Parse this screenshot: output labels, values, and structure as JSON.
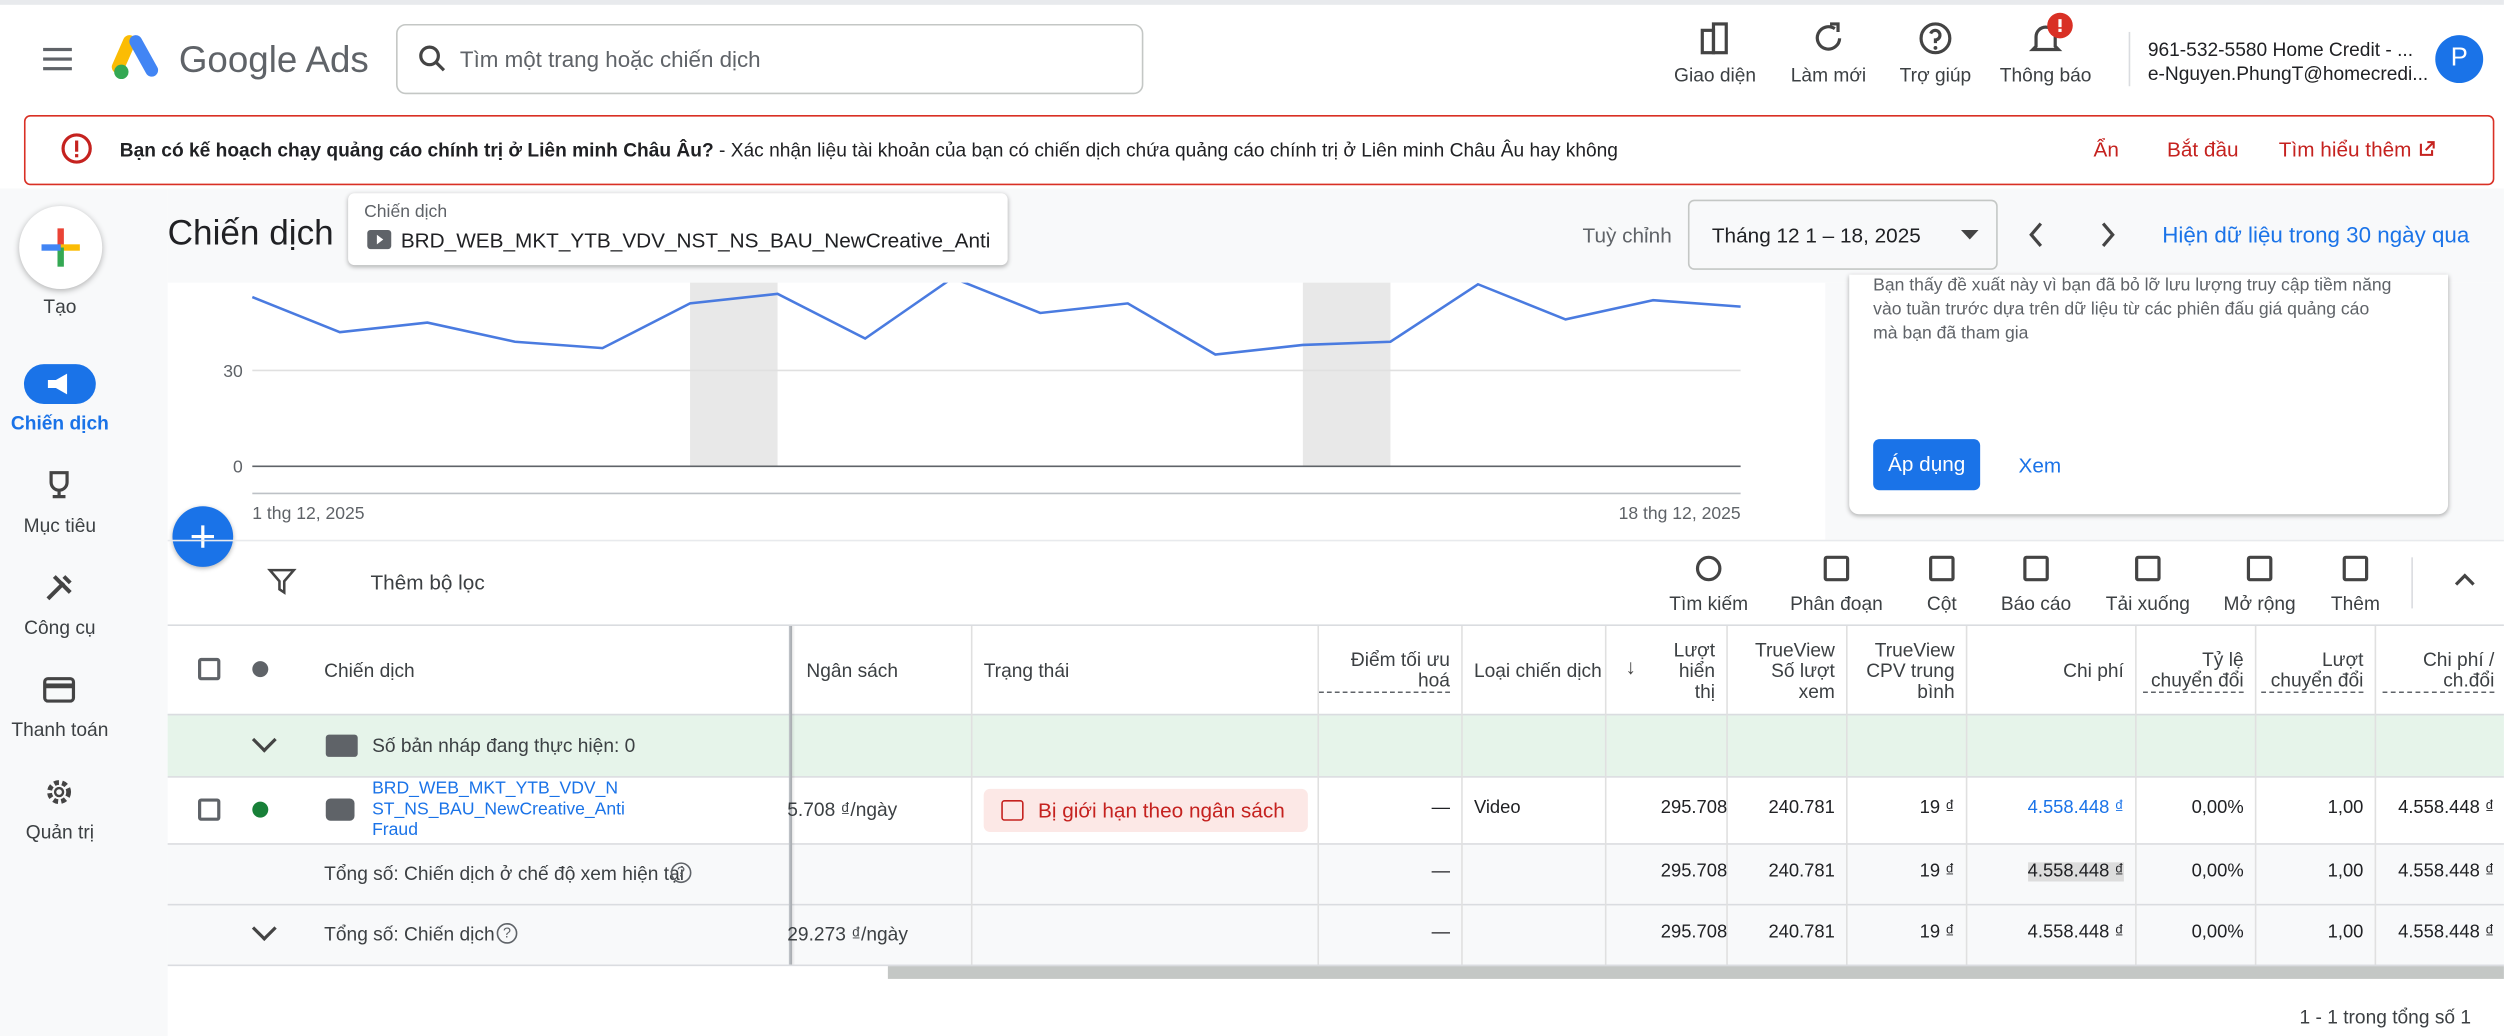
{
  "header": {
    "logo": "Google Ads",
    "search_placeholder": "Tìm một trang hoặc chiến dịch",
    "actions": [
      "Giao diện",
      "Làm mới",
      "Trợ giúp",
      "Thông báo"
    ],
    "account_line1": "961-532-5580 Home Credit - ...",
    "account_line2": "e-Nguyen.PhungT@homecredi...",
    "avatar": "P"
  },
  "banner": {
    "title": "Bạn có kế hoạch chạy quảng cáo chính trị ở Liên minh Châu Âu?",
    "text": " - Xác nhận liệu tài khoản của bạn có chiến dịch chứa quảng cáo chính trị ở Liên minh Châu Âu hay không",
    "actions": [
      "Ẩn",
      "Bắt đầu",
      "Tìm hiểu thêm"
    ]
  },
  "sidebar": [
    "Tạo",
    "Chiến dịch",
    "Mục tiêu",
    "Công cụ",
    "Thanh toán",
    "Quản trị"
  ],
  "page": {
    "title": "Chiến dịch",
    "selector_label": "Chiến dịch",
    "selector_value": "BRD_WEB_MKT_YTB_VDV_NST_NS_BAU_NewCreative_Anti Fraud",
    "date_label": "Tuỳ chỉnh",
    "date_range": "Tháng 12 1 – 18, 2025",
    "last30_link": "Hiện dữ liệu trong 30 ngày qua"
  },
  "chart": {
    "type": "line",
    "color": "#4a7be0",
    "values": [
      53,
      42,
      45,
      39,
      37,
      51,
      54,
      40,
      59,
      48,
      51,
      35,
      38,
      39,
      57,
      46,
      52,
      50
    ],
    "ylim": [
      0,
      60
    ],
    "yticks": [
      0,
      30
    ],
    "x_labels": [
      "1 thg 12, 2025",
      "18 thg 12, 2025"
    ]
  },
  "recommendation": {
    "text": [
      "Bạn thấy đề xuất này vì bạn đã bỏ lỡ lưu lượng truy cập tiềm năng",
      "vào tuần trước dựa trên dữ liệu từ các phiên đấu giá quảng cáo",
      "mà bạn đã tham gia"
    ],
    "apply": "Áp dụng",
    "view": "Xem"
  },
  "toolbar": {
    "filter": "Thêm bộ lọc",
    "tools": [
      "Tìm kiếm",
      "Phân đoạn",
      "Cột",
      "Báo cáo",
      "Tải xuống",
      "Mở rộng",
      "Thêm"
    ]
  },
  "table": {
    "columns": [
      "Chiến dịch",
      "Ngân sách",
      "Trạng thái",
      "Điểm tối ưu hoá",
      "Loại chiến dịch",
      "Lượt hiển thị",
      "TrueView Số lượt xem",
      "TrueView CPV trung bình",
      "Chi phí",
      "Tỷ lệ chuyển đổi",
      "Lượt chuyển đổi",
      "Chi phí / ch.đổi"
    ],
    "drafts": "Số bản nháp đang thực hiện: 0",
    "rows": [
      [
        "BRD_WEB_MKT_YTB_VDV_NST_NS_BAU_NewCreative_Anti Fraud",
        "5.708 ₫/ngày",
        "Bị giới hạn theo ngân sách",
        "—",
        "Video",
        "295.708",
        "240.781",
        "19 ₫",
        "4.558.448 ₫",
        "0,00%",
        "1,00",
        "4.558.448 ₫"
      ],
      [
        "Tổng số: Chiến dịch ở chế độ xem hiện tại",
        "",
        "",
        "—",
        "",
        "295.708",
        "240.781",
        "19 ₫",
        "4.558.448 ₫",
        "0,00%",
        "1,00",
        "4.558.448 ₫"
      ],
      [
        "Tổng số: Chiến dịch",
        "29.273 ₫/ngày",
        "",
        "—",
        "",
        "295.708",
        "240.781",
        "19 ₫",
        "4.558.448 ₫",
        "0,00%",
        "1,00",
        "4.558.448 ₫"
      ]
    ],
    "pagination": "1 - 1 trong tổng số 1"
  }
}
